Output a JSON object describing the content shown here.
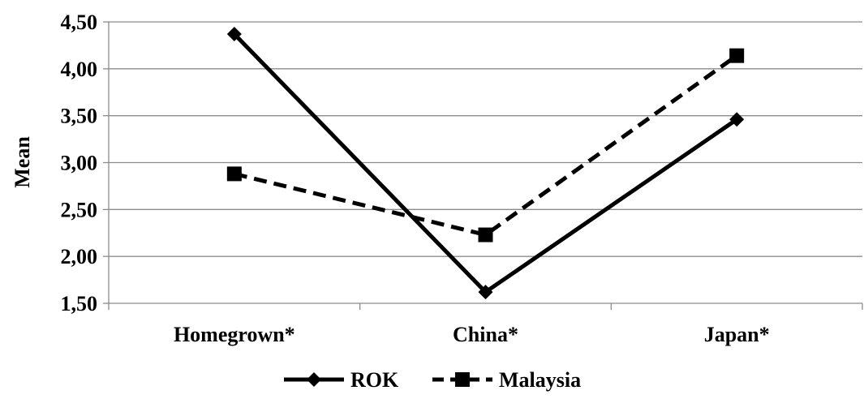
{
  "chart_data": {
    "type": "line",
    "title": "",
    "xlabel": "",
    "ylabel": "Mean",
    "categories": [
      "Homegrown*",
      "China*",
      "Japan*"
    ],
    "ylim": [
      1.5,
      4.5
    ],
    "yticks": [
      "1,50",
      "2,00",
      "2,50",
      "3,00",
      "3,50",
      "4,00",
      "4,50"
    ],
    "ytick_values": [
      1.5,
      2.0,
      2.5,
      3.0,
      3.5,
      4.0,
      4.5
    ],
    "grid": "horizontal",
    "legend_position": "bottom",
    "series": [
      {
        "name": "ROK",
        "values": [
          4.37,
          1.62,
          3.46
        ],
        "line_style": "solid",
        "marker": "diamond",
        "color": "#000000"
      },
      {
        "name": "Malaysia",
        "values": [
          2.88,
          2.23,
          4.14
        ],
        "line_style": "dashed",
        "marker": "square",
        "color": "#000000"
      }
    ]
  }
}
